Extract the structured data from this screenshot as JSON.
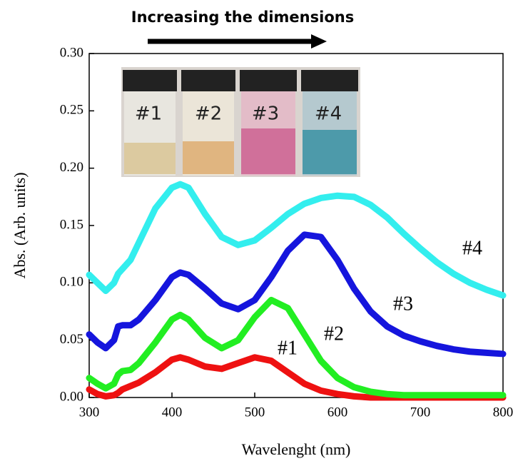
{
  "chart_data": {
    "type": "line",
    "title": "Increasing the dimensions",
    "xlabel": "Wavelenght (nm)",
    "ylabel": "Abs. (Arb. units)",
    "x": [
      300,
      310,
      320,
      330,
      335,
      340,
      350,
      360,
      380,
      400,
      410,
      420,
      440,
      460,
      480,
      500,
      520,
      540,
      560,
      580,
      600,
      620,
      640,
      660,
      680,
      700,
      720,
      740,
      760,
      780,
      800
    ],
    "series": [
      {
        "name": "#1",
        "color": "#ee1111",
        "values": [
          0.007,
          0.003,
          0.001,
          0.002,
          0.004,
          0.007,
          0.01,
          0.013,
          0.022,
          0.033,
          0.035,
          0.033,
          0.027,
          0.025,
          0.03,
          0.035,
          0.032,
          0.022,
          0.012,
          0.006,
          0.003,
          0.001,
          0,
          0,
          0,
          0,
          0,
          0,
          0,
          0,
          0
        ]
      },
      {
        "name": "#2",
        "color": "#22ee22",
        "values": [
          0.017,
          0.012,
          0.008,
          0.012,
          0.02,
          0.023,
          0.024,
          0.03,
          0.048,
          0.068,
          0.072,
          0.068,
          0.052,
          0.043,
          0.05,
          0.07,
          0.085,
          0.078,
          0.055,
          0.032,
          0.017,
          0.009,
          0.005,
          0.003,
          0.002,
          0.002,
          0.002,
          0.002,
          0.002,
          0.002,
          0.002
        ]
      },
      {
        "name": "#3",
        "color": "#1515dd",
        "values": [
          0.055,
          0.048,
          0.043,
          0.05,
          0.062,
          0.063,
          0.063,
          0.068,
          0.085,
          0.105,
          0.109,
          0.107,
          0.095,
          0.082,
          0.077,
          0.085,
          0.105,
          0.128,
          0.142,
          0.14,
          0.12,
          0.095,
          0.075,
          0.062,
          0.054,
          0.049,
          0.045,
          0.042,
          0.04,
          0.039,
          0.038
        ]
      },
      {
        "name": "#4",
        "color": "#33eeee",
        "values": [
          0.107,
          0.1,
          0.093,
          0.1,
          0.108,
          0.112,
          0.12,
          0.135,
          0.165,
          0.183,
          0.186,
          0.183,
          0.16,
          0.14,
          0.133,
          0.137,
          0.148,
          0.16,
          0.169,
          0.174,
          0.176,
          0.175,
          0.168,
          0.157,
          0.143,
          0.13,
          0.118,
          0.108,
          0.1,
          0.094,
          0.089
        ]
      }
    ],
    "xlim": [
      300,
      800
    ],
    "xticks": [
      300,
      400,
      500,
      600,
      700,
      800
    ],
    "ylim": [
      0,
      0.3
    ],
    "yticks": [
      {
        "value": 0,
        "label": "0.00"
      },
      {
        "value": 0.05,
        "label": "0.05"
      },
      {
        "value": 0.1,
        "label": "0.10"
      },
      {
        "value": 0.15,
        "label": "0.15"
      },
      {
        "value": 0.2,
        "label": "0.20"
      },
      {
        "value": 0.25,
        "label": "0.25"
      },
      {
        "value": 0.3,
        "label": "0.30"
      }
    ]
  }
}
